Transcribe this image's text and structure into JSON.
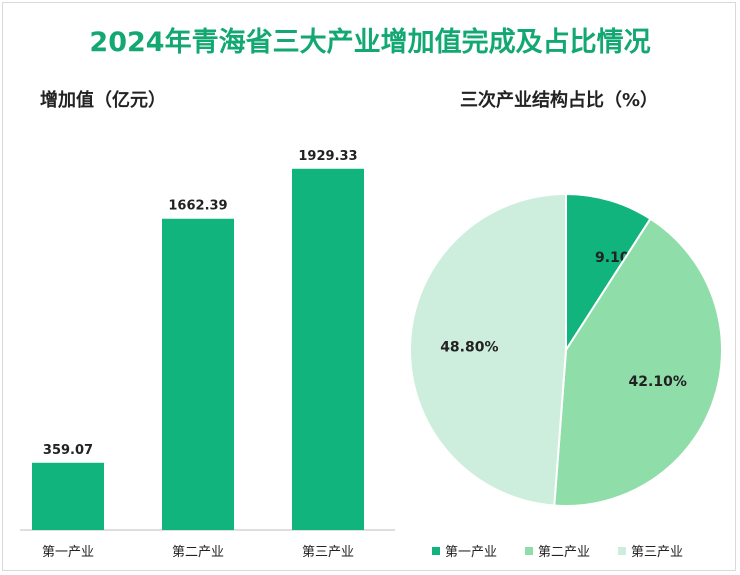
{
  "title": "2024年青海省三大产业增加值完成及占比情况",
  "colors": {
    "first": "#12b47e",
    "second": "#8fdda8",
    "third": "#cdeedd",
    "title": "#13a872"
  },
  "chart_data": [
    {
      "type": "bar",
      "ylabel": "增加值（亿元）",
      "categories": [
        "第一产业",
        "第二产业",
        "第三产业"
      ],
      "values": [
        359.07,
        1662.39,
        1929.33
      ],
      "value_labels": [
        "359.07",
        "1662.39",
        "1929.33"
      ],
      "ylim": [
        0,
        2350
      ],
      "grid": false
    },
    {
      "type": "pie",
      "title": "三次产业结构占比（%）",
      "categories": [
        "第一产业",
        "第二产业",
        "第三产业"
      ],
      "values": [
        9.1,
        42.1,
        48.8
      ],
      "value_labels": [
        "9.10%",
        "42.10%",
        "48.80%"
      ],
      "legend": "bottom"
    }
  ]
}
